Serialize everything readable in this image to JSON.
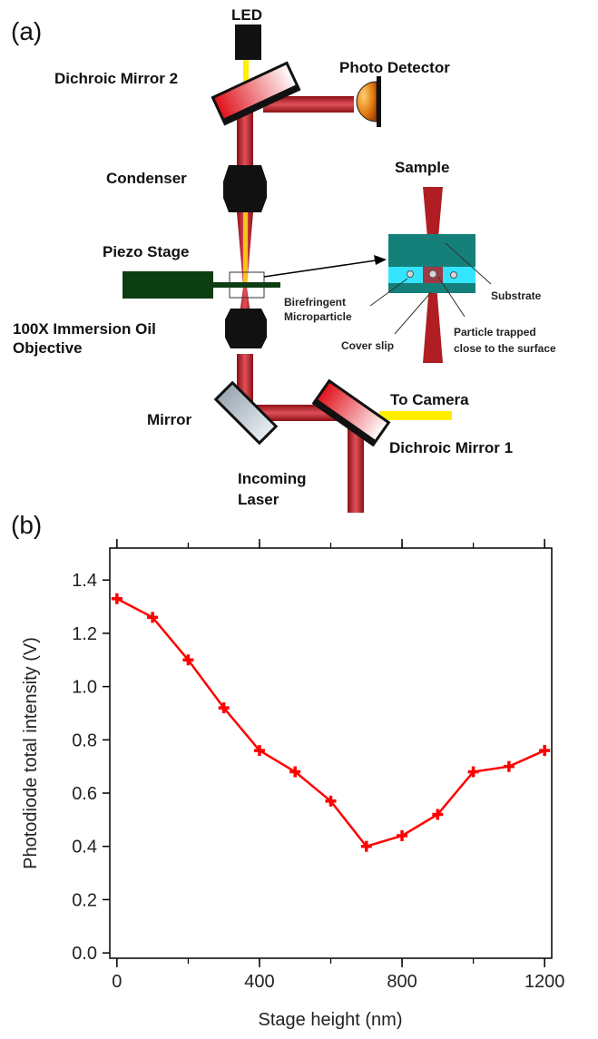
{
  "panel_a": {
    "label": "(a)",
    "labels": {
      "led": "LED",
      "dichroic_mirror_2": "Dichroic Mirror 2",
      "photo_detector": "Photo Detector",
      "condenser": "Condenser",
      "sample": "Sample",
      "piezo_stage": "Piezo Stage",
      "birefringent": "Birefringent",
      "microparticle": "Microparticle",
      "substrate": "Substrate",
      "objective_line1": "100X Immersion Oil",
      "objective_line2": "Objective",
      "cover_slip": "Cover slip",
      "particle_trapped_line1": "Particle trapped",
      "particle_trapped_line2": "close to the surface",
      "mirror": "Mirror",
      "to_camera": "To Camera",
      "dichroic_mirror_1": "Dichroic Mirror 1",
      "incoming_line1": "Incoming",
      "incoming_line2": "Laser"
    },
    "colors": {
      "laser": "#b01e24",
      "led_light": "#ffee00",
      "stage": "#0d3d12",
      "sample_dark": "#157f7a",
      "sample_light": "#33e5ff"
    }
  },
  "panel_b": {
    "label": "(b)"
  },
  "chart_data": {
    "type": "line",
    "xlabel": "Stage height (nm)",
    "ylabel": "Photodiode total intensity (V)",
    "xlim": [
      -20,
      1220
    ],
    "ylim": [
      -0.02,
      1.52
    ],
    "xticks": [
      0,
      400,
      800,
      1200
    ],
    "xticks_minor": [
      0,
      200,
      400,
      600,
      800,
      1000,
      1200
    ],
    "yticks": [
      0.0,
      0.2,
      0.4,
      0.6,
      0.8,
      1.0,
      1.2,
      1.4
    ],
    "xtick_labels": [
      "0",
      "400",
      "800",
      "1200"
    ],
    "ytick_labels": [
      "0.0",
      "0.2",
      "0.4",
      "0.6",
      "0.8",
      "1.0",
      "1.2",
      "1.4"
    ],
    "marker": "plus",
    "color": "#ff0000",
    "grid": false,
    "series": [
      {
        "x": [
          0,
          100,
          200,
          300,
          400,
          500,
          600,
          700,
          800,
          900,
          1000,
          1100,
          1200
        ],
        "y": [
          1.33,
          1.26,
          1.1,
          0.92,
          0.76,
          0.68,
          0.57,
          0.4,
          0.44,
          0.52,
          0.68,
          0.7,
          0.76
        ]
      }
    ]
  }
}
